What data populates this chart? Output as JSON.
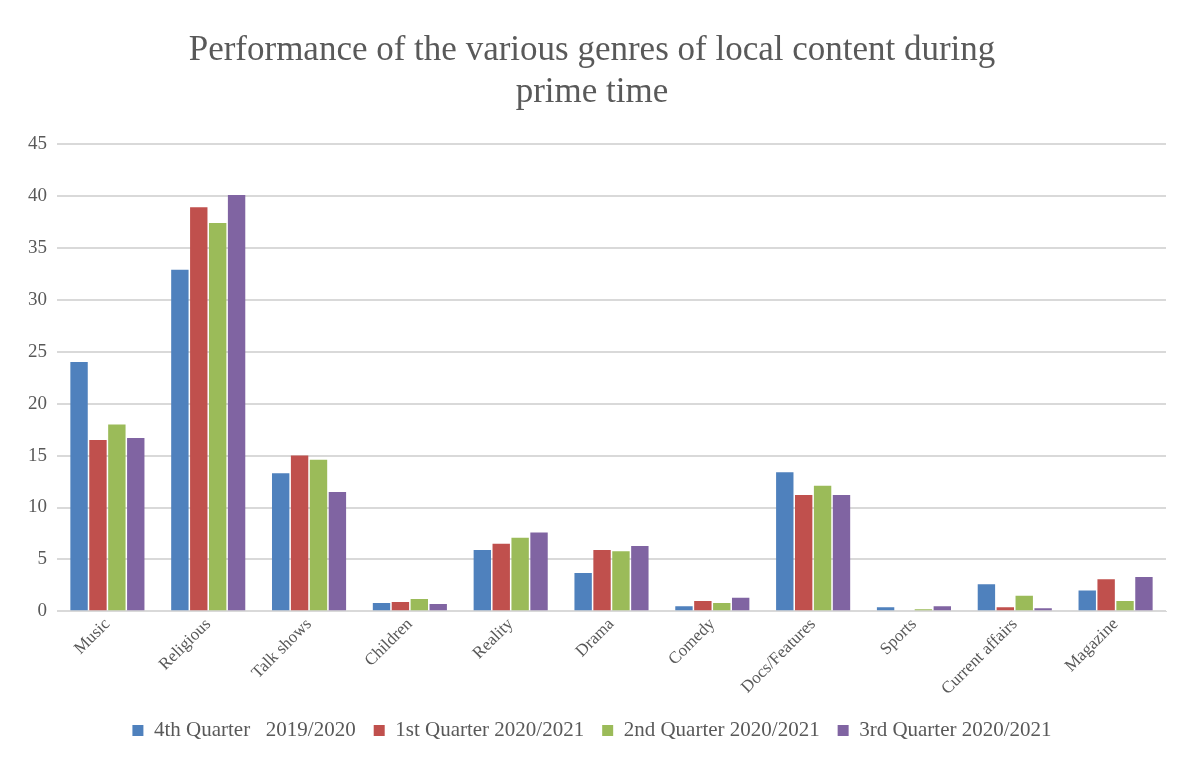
{
  "chart_data": {
    "type": "bar",
    "title": "Performance of the various genres of local content during prime time",
    "categories": [
      "Music",
      "Religious",
      "Talk shows",
      "Children",
      "Reality",
      "Drama",
      "Comedy",
      "Docs/Features",
      "Sports",
      "Current affairs",
      "Magazine"
    ],
    "series": [
      {
        "name": "4th Quarter   2019/2020",
        "color": "#4f81bd",
        "values": [
          24.0,
          32.9,
          13.3,
          0.8,
          5.9,
          3.7,
          0.5,
          13.4,
          0.4,
          2.6,
          2.0
        ]
      },
      {
        "name": "1st Quarter 2020/2021",
        "color": "#c0504d",
        "values": [
          16.5,
          38.9,
          15.0,
          0.9,
          6.5,
          5.9,
          1.0,
          11.2,
          null,
          0.4,
          3.1
        ]
      },
      {
        "name": "2nd Quarter 2020/2021",
        "color": "#9bbb59",
        "values": [
          18.0,
          37.4,
          14.6,
          1.2,
          7.1,
          5.8,
          0.8,
          12.1,
          0.2,
          1.5,
          1.0
        ]
      },
      {
        "name": "3rd Quarter 2020/2021",
        "color": "#8064a2",
        "values": [
          16.7,
          40.1,
          11.5,
          0.7,
          7.6,
          6.3,
          1.3,
          11.2,
          0.5,
          0.3,
          3.3
        ]
      }
    ],
    "ylim": [
      0,
      45
    ],
    "yticks": [
      0,
      5,
      10,
      15,
      20,
      25,
      30,
      35,
      40,
      45
    ],
    "grid": "y",
    "legend": "bottom"
  }
}
